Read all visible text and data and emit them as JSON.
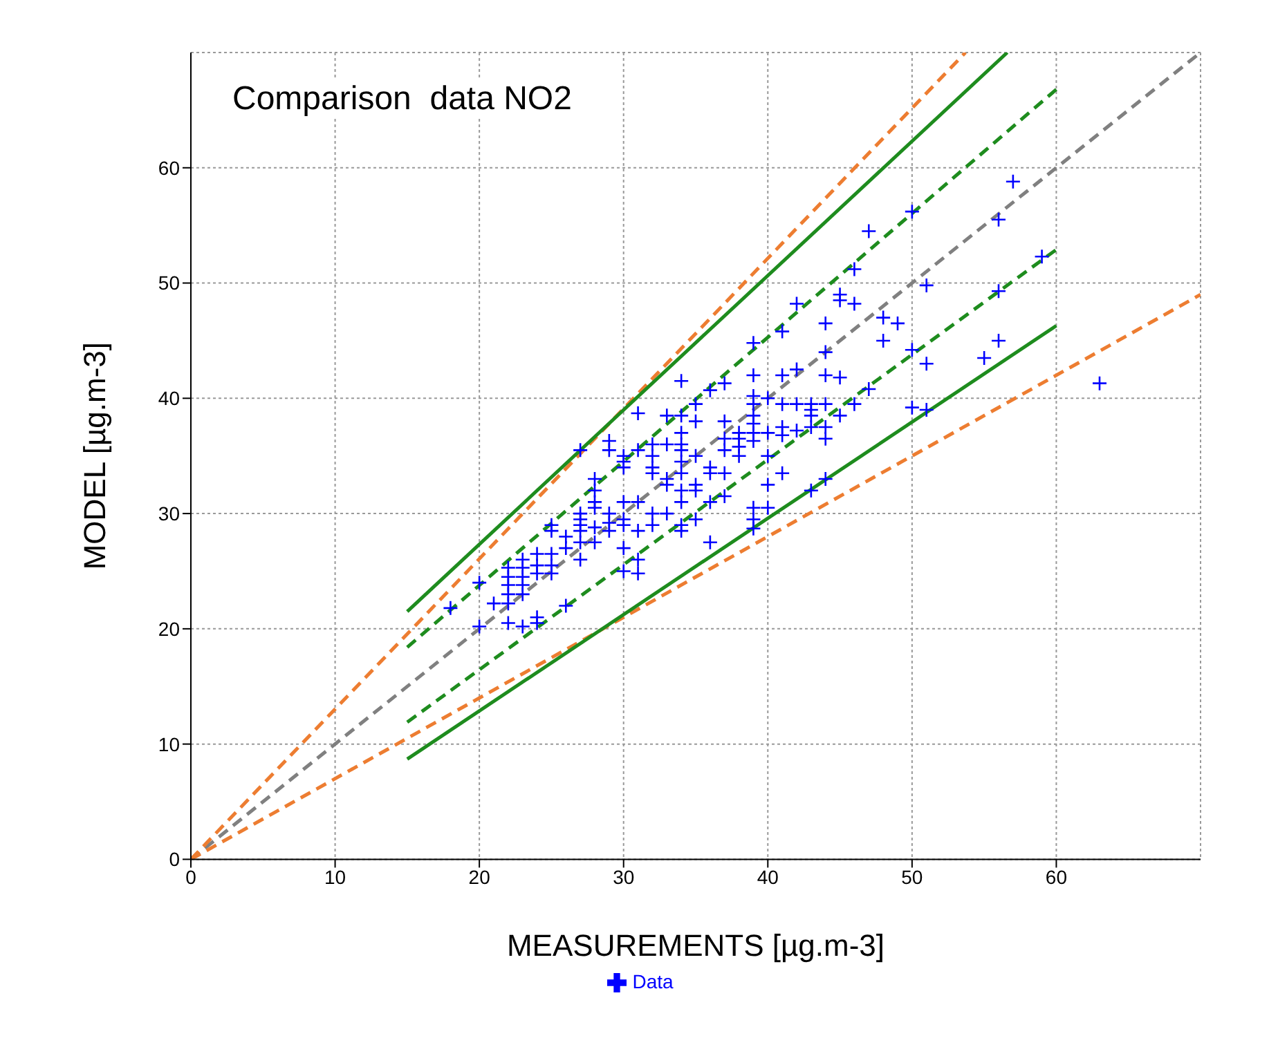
{
  "chart_data": {
    "type": "scatter",
    "title": "Comparison  data NO2",
    "xlabel": "MEASUREMENTS [µg.m-3]",
    "ylabel": "MODEL [µg.m-3]",
    "xlim": [
      0,
      70
    ],
    "ylim": [
      0,
      70
    ],
    "xticks": [
      0,
      10,
      20,
      30,
      40,
      50,
      60
    ],
    "yticks": [
      0,
      10,
      20,
      30,
      40,
      50,
      60
    ],
    "grid": true,
    "legend": "bottom",
    "series": [
      {
        "name": "Data",
        "color": "#0000ff",
        "marker": "cross",
        "x": [
          18,
          20,
          20,
          21,
          22,
          22,
          22,
          22,
          22,
          22,
          23,
          23,
          23,
          23,
          23,
          23,
          24,
          24,
          24,
          24,
          24,
          25,
          25,
          25,
          25,
          25,
          26,
          26,
          26,
          27,
          27,
          27,
          27,
          27,
          27,
          27,
          28,
          28,
          28,
          28,
          28,
          28,
          29,
          29,
          29,
          29,
          29,
          30,
          30,
          30,
          30,
          30,
          30,
          30,
          30,
          31,
          31,
          31,
          31,
          31,
          31,
          32,
          32,
          32,
          32,
          32,
          32,
          33,
          33,
          33,
          33,
          33,
          34,
          34,
          34,
          34,
          34,
          34,
          34,
          34,
          34,
          34,
          34,
          35,
          35,
          35,
          35,
          35,
          35,
          36,
          36,
          36,
          36,
          36,
          37,
          37,
          37,
          37,
          37,
          37,
          38,
          38,
          38,
          38,
          39,
          39,
          39,
          39,
          39,
          39,
          39,
          39,
          39,
          39,
          39,
          40,
          40,
          40,
          40,
          40,
          41,
          41,
          41,
          41,
          41,
          41,
          42,
          42,
          42,
          42,
          43,
          43,
          43,
          43,
          43,
          44,
          44,
          44,
          44,
          44,
          44,
          44,
          45,
          45,
          45,
          45,
          46,
          46,
          46,
          47,
          47,
          48,
          48,
          49,
          50,
          50,
          50,
          51,
          51,
          51,
          55,
          56,
          56,
          56,
          57,
          59,
          63
        ],
        "values": [
          21.8,
          24,
          20.2,
          22.2,
          25.3,
          24.5,
          23.8,
          23,
          22.2,
          20.5,
          26,
          25.3,
          24.5,
          23.8,
          23,
          20.2,
          26.5,
          25.5,
          24.8,
          21,
          20.5,
          29,
          28.5,
          26.5,
          25.5,
          24.8,
          28,
          27,
          22,
          35.5,
          30,
          29.5,
          29,
          28.5,
          27.5,
          26,
          33,
          32,
          31,
          30.5,
          28.8,
          27.5,
          36.3,
          35.5,
          30,
          29.2,
          28.5,
          35,
          34.5,
          34,
          31,
          29.5,
          29,
          27,
          25,
          38.7,
          35.5,
          31,
          28.5,
          26,
          24.8,
          36,
          35,
          34,
          33.5,
          30,
          29,
          38.5,
          36,
          33,
          32.5,
          30,
          41.5,
          38.5,
          37,
          36,
          35.5,
          34.5,
          33.5,
          32,
          31,
          29,
          28.5,
          39.5,
          38,
          35,
          32.5,
          32,
          29.5,
          40.7,
          34,
          33.5,
          31,
          27.5,
          41.3,
          38,
          36.5,
          35.5,
          33.5,
          31.5,
          37,
          36.5,
          35.8,
          35,
          44.8,
          42,
          40.2,
          39.5,
          38.5,
          37.8,
          37,
          36.3,
          30.5,
          29.5,
          28.7,
          40,
          37,
          35,
          32.5,
          30.5,
          45.8,
          42,
          39.5,
          37.5,
          36.8,
          33.5,
          48.2,
          42.5,
          39.5,
          37.2,
          39.5,
          39,
          38.5,
          37.5,
          32,
          46.5,
          44,
          42,
          39.5,
          37.5,
          36.5,
          33,
          49,
          48.5,
          41.8,
          38.5,
          51.2,
          48.2,
          39.5,
          54.5,
          40.8,
          47,
          45,
          46.5,
          56.2,
          44.2,
          39.2,
          49.8,
          43,
          39,
          43.5,
          55.5,
          49.3,
          45,
          58.8,
          52.3,
          41.3
        ]
      },
      {
        "type": "line",
        "color": "#808080",
        "line_style": "dashed",
        "x": [
          0,
          70
        ],
        "values": [
          0,
          70
        ]
      },
      {
        "type": "line",
        "color": "#ed7d31",
        "line_style": "dashed",
        "x": [
          0,
          53.7
        ],
        "values": [
          0,
          70
        ]
      },
      {
        "type": "line",
        "color": "#ed7d31",
        "line_style": "dashed",
        "x": [
          0,
          70
        ],
        "values": [
          0,
          49
        ]
      },
      {
        "type": "line",
        "color": "#1e8c1e",
        "line_style": "solid",
        "x": [
          15,
          56.6
        ],
        "values": [
          21.5,
          70
        ]
      },
      {
        "type": "line",
        "color": "#1e8c1e",
        "line_style": "solid",
        "x": [
          15,
          60
        ],
        "values": [
          8.7,
          46.3
        ]
      },
      {
        "type": "line",
        "color": "#1e8c1e",
        "line_style": "dashed",
        "x": [
          15,
          60
        ],
        "values": [
          18.4,
          66.8
        ]
      },
      {
        "type": "line",
        "color": "#1e8c1e",
        "line_style": "dashed",
        "x": [
          15,
          60
        ],
        "values": [
          11.9,
          52.9
        ]
      }
    ]
  }
}
